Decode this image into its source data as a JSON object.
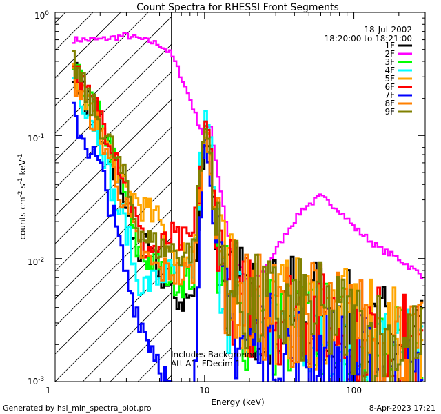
{
  "chart_data": {
    "type": "line",
    "title": "Count Spectra for RHESSI Front Segments",
    "xlabel": "Energy (keV)",
    "ylabel_parts": [
      "counts cm",
      "-2",
      " s",
      "-1",
      " keV",
      "-1"
    ],
    "xscale": "log",
    "yscale": "log",
    "xlim": [
      1,
      300
    ],
    "ylim": [
      0.001,
      1
    ],
    "x_ticks": [
      {
        "value": 10,
        "label": "10"
      },
      {
        "value": 100,
        "label": "100"
      }
    ],
    "x_tick_left_label": "1",
    "y_ticks": [
      {
        "value": 1,
        "base": "10",
        "exp": "0"
      },
      {
        "value": 0.1,
        "base": "10",
        "exp": "-1"
      },
      {
        "value": 0.01,
        "base": "10",
        "exp": "-2"
      },
      {
        "value": 0.001,
        "base": "10",
        "exp": "-3"
      }
    ],
    "hatched_region_energy": [
      1,
      6
    ],
    "date": "18-Jul-2002",
    "time_range": "18:20:00 to 18:21:00",
    "annotation_lines": [
      "Includes Background",
      "Att A1, FDecim 1"
    ],
    "series": [
      {
        "name": "1F",
        "color": "#000000",
        "low": [
          0.36,
          0.2,
          0.13,
          0.05,
          0.025,
          0.011,
          0.012,
          0.008,
          0.005
        ],
        "peak": 0.1,
        "tail": 0.004
      },
      {
        "name": "2F",
        "color": "#ff00ff",
        "points": [
          [
            1.2,
            0.6
          ],
          [
            2,
            0.6
          ],
          [
            3,
            0.65
          ],
          [
            5,
            0.55
          ],
          [
            6,
            0.46
          ],
          [
            7,
            0.3
          ],
          [
            8,
            0.2
          ],
          [
            9,
            0.13
          ],
          [
            10,
            0.1
          ],
          [
            11,
            0.12
          ],
          [
            12,
            0.06
          ],
          [
            15,
            0.012
          ],
          [
            20,
            0.006
          ],
          [
            25,
            0.008
          ],
          [
            35,
            0.016
          ],
          [
            45,
            0.025
          ],
          [
            60,
            0.032
          ],
          [
            80,
            0.025
          ],
          [
            100,
            0.018
          ],
          [
            150,
            0.012
          ],
          [
            200,
            0.01
          ],
          [
            300,
            0.007
          ]
        ]
      },
      {
        "name": "3F",
        "color": "#00ff00",
        "low": [
          0.38,
          0.21,
          0.14,
          0.06,
          0.03,
          0.012,
          0.01,
          0.009,
          0.007
        ],
        "peak": 0.12,
        "tail": 0.003
      },
      {
        "name": "4F",
        "color": "#00ffff",
        "low": [
          0.3,
          0.18,
          0.1,
          0.03,
          0.018,
          0.007,
          0.006,
          0.007,
          0.008
        ],
        "peak": 0.14,
        "tail": 0.003
      },
      {
        "name": "5F",
        "color": "#ffa500",
        "low": [
          0.35,
          0.2,
          0.12,
          0.06,
          0.035,
          0.03,
          0.025,
          0.02,
          0.012
        ],
        "peak": 0.12,
        "tail": 0.004
      },
      {
        "name": "6F",
        "color": "#ff0000",
        "low": [
          0.4,
          0.22,
          0.15,
          0.08,
          0.04,
          0.02,
          0.012,
          0.012,
          0.015
        ],
        "peak": 0.12,
        "tail": 0.004
      },
      {
        "name": "7F",
        "color": "#0000ff",
        "low": [
          0.15,
          0.09,
          0.055,
          0.02,
          0.007,
          0.004,
          0.0025,
          0.0015,
          0.0008
        ],
        "peak": 0.09,
        "tail": 0.002
      },
      {
        "name": "8F",
        "color": "#ff8000",
        "low": [
          0.3,
          0.18,
          0.11,
          0.05,
          0.025,
          0.014,
          0.01,
          0.008,
          0.008
        ],
        "peak": 0.11,
        "tail": 0.004
      },
      {
        "name": "9F",
        "color": "#808000",
        "low": [
          0.42,
          0.22,
          0.13,
          0.07,
          0.04,
          0.02,
          0.015,
          0.012,
          0.012
        ],
        "peak": 0.12,
        "tail": 0.004
      }
    ]
  },
  "footer": {
    "generated_by": "Generated by hsi_min_spectra_plot.pro",
    "timestamp": "8-Apr-2023 17:21"
  }
}
